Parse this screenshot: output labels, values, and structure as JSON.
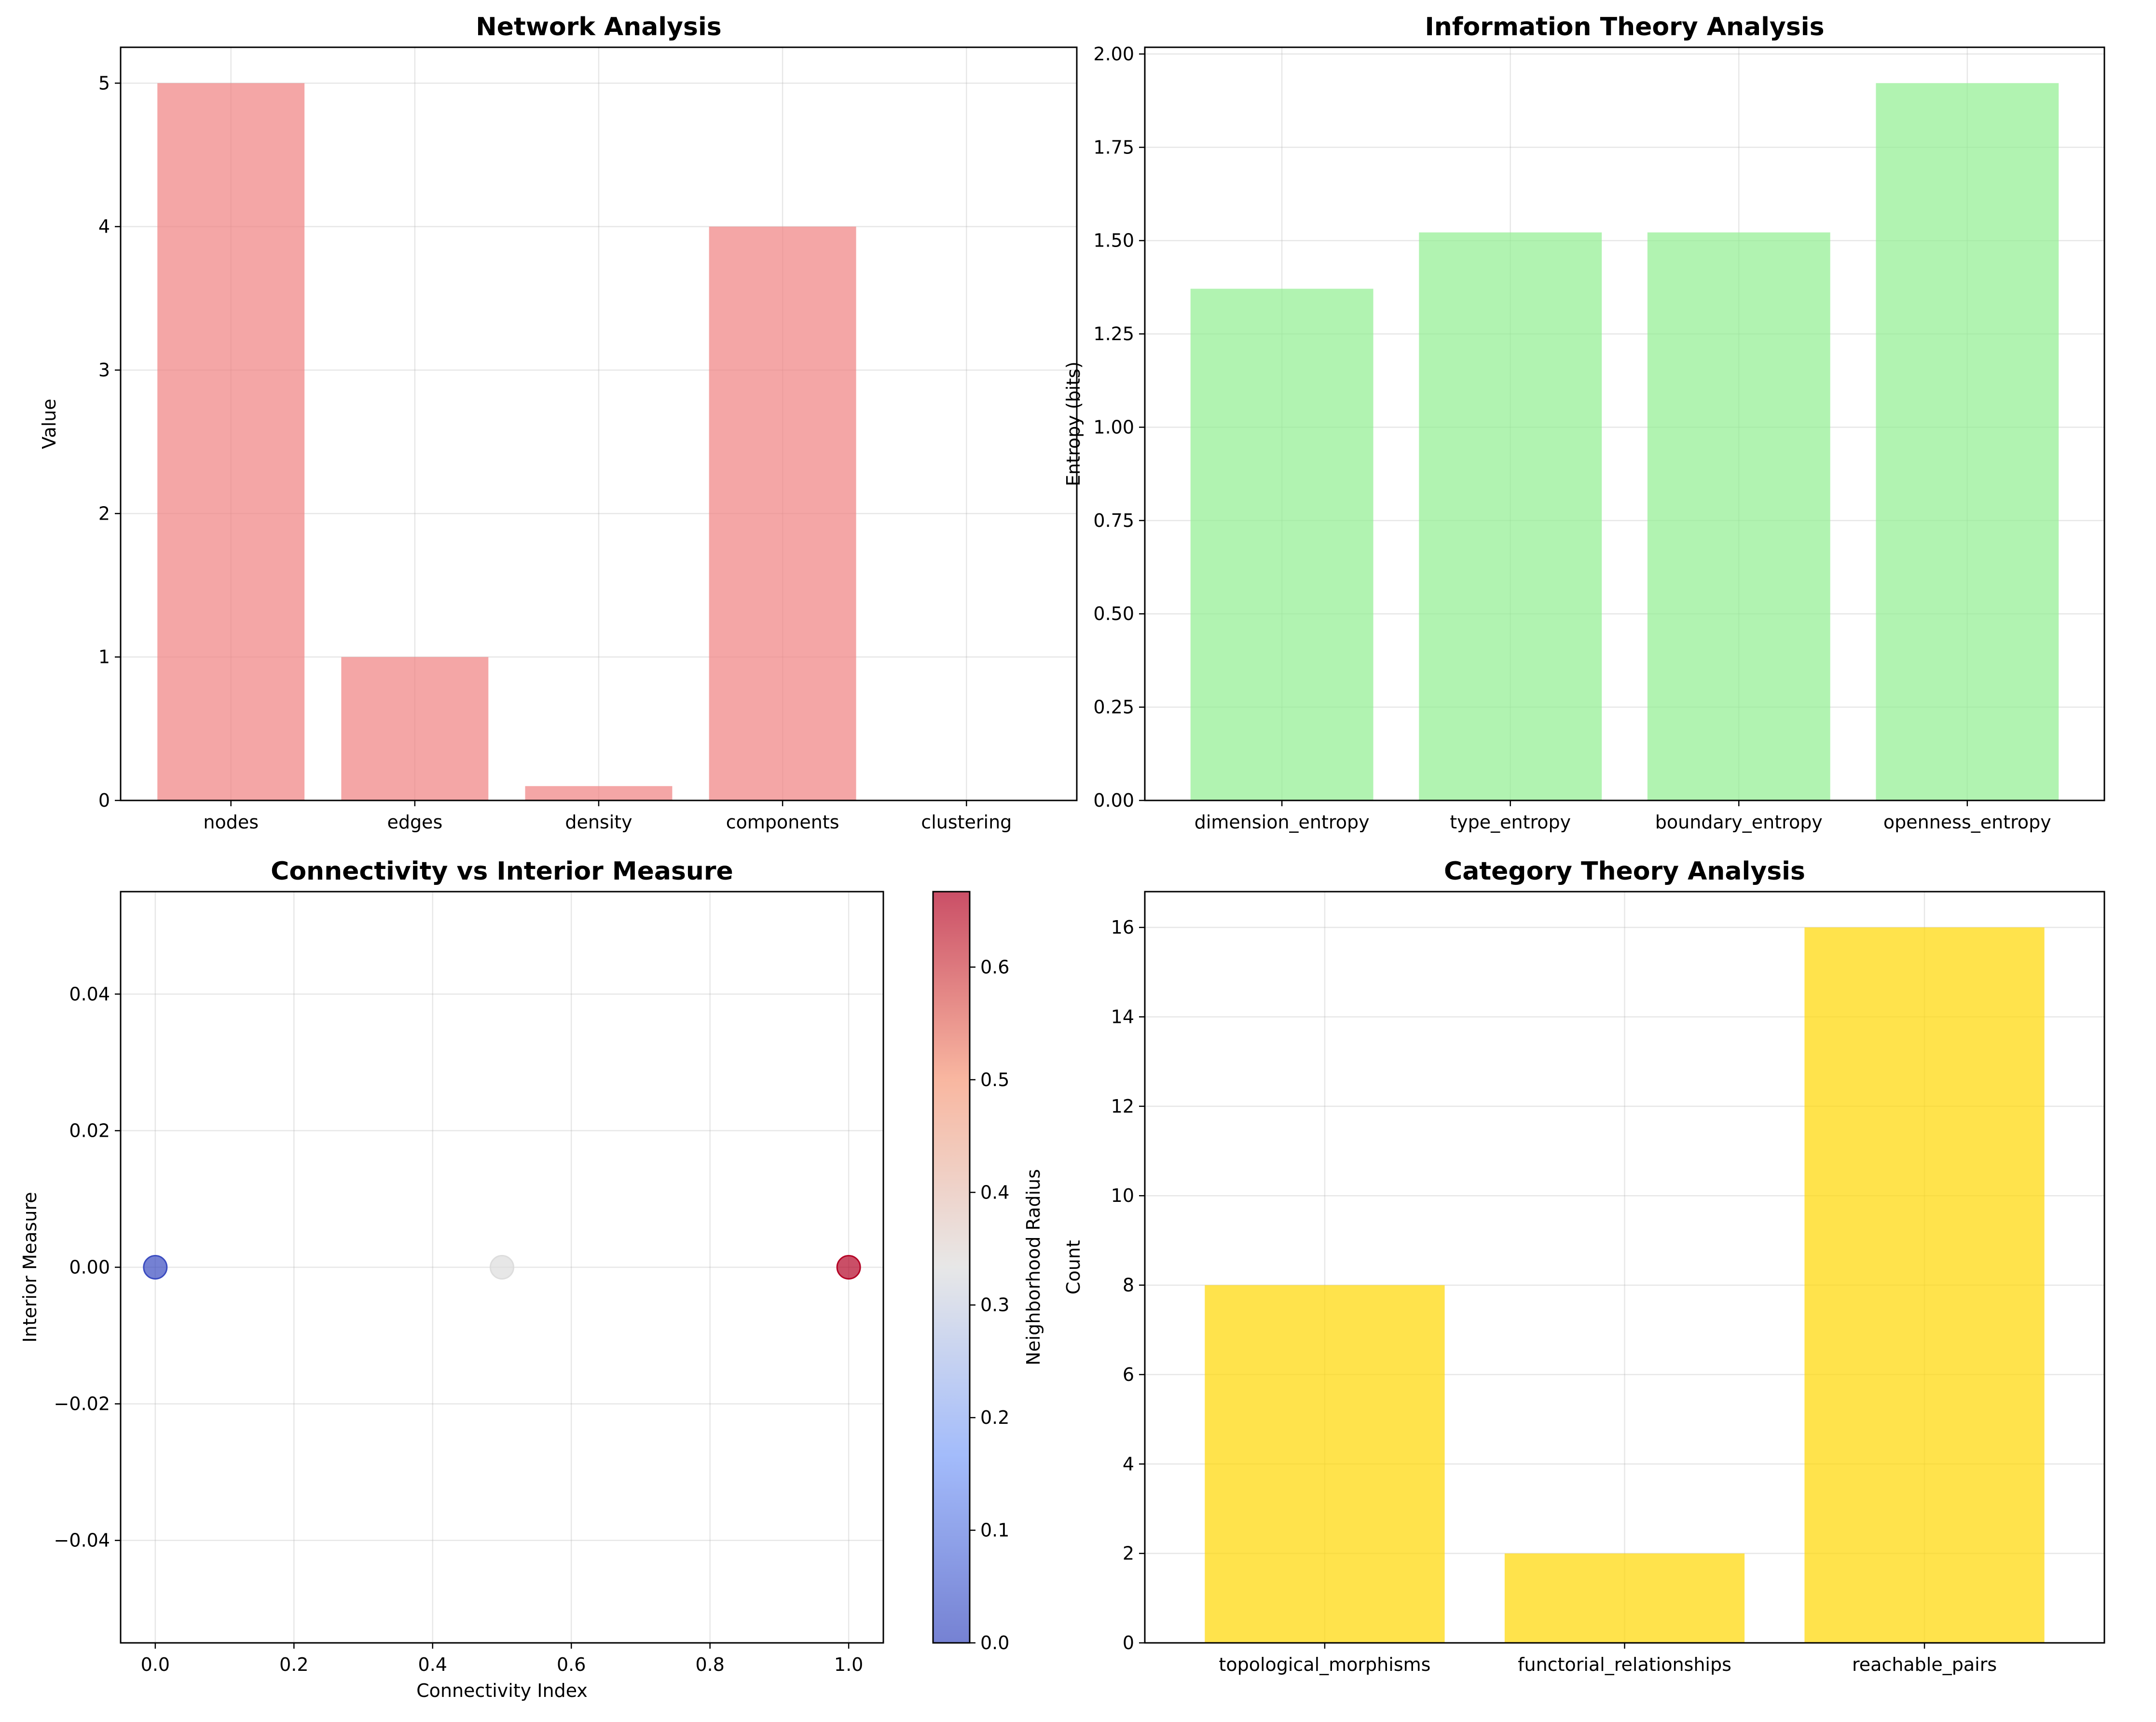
{
  "chart_data": [
    {
      "id": "network",
      "type": "bar",
      "title": "Network Analysis",
      "xlabel": "",
      "ylabel": "Value",
      "categories": [
        "nodes",
        "edges",
        "density",
        "components",
        "clustering"
      ],
      "values": [
        5,
        1,
        0.1,
        4,
        0
      ],
      "ylim": [
        0,
        5.25
      ],
      "yticks": [
        0,
        1,
        2,
        3,
        4,
        5
      ],
      "ytick_labels": [
        "0",
        "1",
        "2",
        "3",
        "4",
        "5"
      ],
      "color": "#f08080",
      "opacity": 0.7,
      "grid": true
    },
    {
      "id": "information",
      "type": "bar",
      "title": "Information Theory Analysis",
      "xlabel": "",
      "ylabel": "Entropy (bits)",
      "categories": [
        "dimension_entropy",
        "type_entropy",
        "boundary_entropy",
        "openness_entropy"
      ],
      "values": [
        1.371,
        1.522,
        1.522,
        1.922
      ],
      "ylim": [
        0,
        2.018
      ],
      "yticks": [
        0,
        0.25,
        0.5,
        0.75,
        1.0,
        1.25,
        1.5,
        1.75,
        2.0
      ],
      "ytick_labels": [
        "0.00",
        "0.25",
        "0.50",
        "0.75",
        "1.00",
        "1.25",
        "1.50",
        "1.75",
        "2.00"
      ],
      "color": "#90ee90",
      "opacity": 0.7,
      "grid": true
    },
    {
      "id": "connectivity",
      "type": "scatter",
      "title": "Connectivity vs Interior Measure",
      "xlabel": "Connectivity Index",
      "ylabel": "Interior Measure",
      "x": [
        0.0,
        0.5,
        1.0
      ],
      "y": [
        0.0,
        0.0,
        0.0
      ],
      "c": [
        0.0,
        0.333,
        0.667
      ],
      "xlim": [
        -0.05,
        1.05
      ],
      "ylim": [
        -0.055,
        0.055
      ],
      "xticks": [
        0.0,
        0.2,
        0.4,
        0.6,
        0.8,
        1.0
      ],
      "xtick_labels": [
        "0.0",
        "0.2",
        "0.4",
        "0.6",
        "0.8",
        "1.0"
      ],
      "yticks": [
        -0.04,
        -0.02,
        0.0,
        0.02,
        0.04
      ],
      "ytick_labels": [
        "−0.04",
        "−0.02",
        "0.00",
        "0.02",
        "0.04"
      ],
      "colormap": "coolwarm",
      "opacity": 0.7,
      "grid": true,
      "colorbar": {
        "label": "Neighborhood Radius",
        "lim": [
          0,
          0.667
        ],
        "ticks": [
          0.0,
          0.1,
          0.2,
          0.3,
          0.4,
          0.5,
          0.6
        ],
        "tick_labels": [
          "0.0",
          "0.1",
          "0.2",
          "0.3",
          "0.4",
          "0.5",
          "0.6"
        ]
      }
    },
    {
      "id": "category",
      "type": "bar",
      "title": "Category Theory Analysis",
      "xlabel": "",
      "ylabel": "Count",
      "categories": [
        "topological_morphisms",
        "functorial_relationships",
        "reachable_pairs"
      ],
      "values": [
        8,
        2,
        16
      ],
      "ylim": [
        0,
        16.8
      ],
      "yticks": [
        0,
        2,
        4,
        6,
        8,
        10,
        12,
        14,
        16
      ],
      "ytick_labels": [
        "0",
        "2",
        "4",
        "6",
        "8",
        "10",
        "12",
        "14",
        "16"
      ],
      "color": "#ffd700",
      "opacity": 0.7,
      "grid": true
    }
  ]
}
